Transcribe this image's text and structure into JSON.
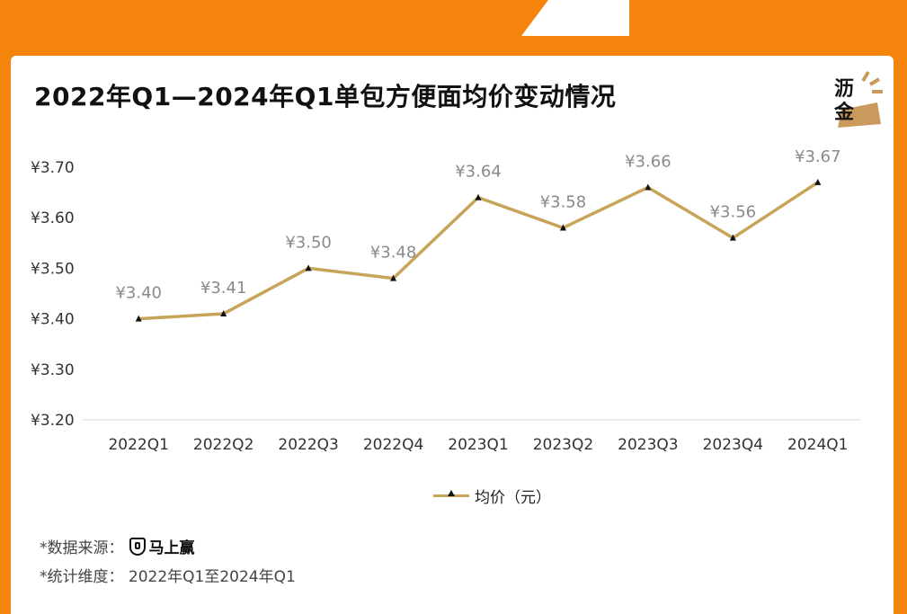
{
  "title": "2022年Q1—2024年Q1单包方便面均价变动情况",
  "logo": {
    "line1": "沥",
    "line2": "金",
    "color": "#c99a5b"
  },
  "colors": {
    "line": "#c7a45a",
    "marker": "#111111",
    "axis": "#e6e6e6",
    "background": "#f5840c"
  },
  "chart_data": {
    "type": "line",
    "title": "2022年Q1—2024年Q1单包方便面均价变动情况",
    "categories": [
      "2022Q1",
      "2022Q2",
      "2022Q3",
      "2022Q4",
      "2023Q1",
      "2023Q2",
      "2023Q3",
      "2023Q4",
      "2024Q1"
    ],
    "series": [
      {
        "name": "均价（元）",
        "values": [
          3.4,
          3.41,
          3.5,
          3.48,
          3.64,
          3.58,
          3.66,
          3.56,
          3.67
        ],
        "labels": [
          "¥3.40",
          "¥3.41",
          "¥3.50",
          "¥3.48",
          "¥3.64",
          "¥3.58",
          "¥3.66",
          "¥3.56",
          "¥3.67"
        ]
      }
    ],
    "ylim": [
      3.2,
      3.7
    ],
    "yticks": [
      3.2,
      3.3,
      3.4,
      3.5,
      3.6,
      3.7
    ],
    "ytick_labels": [
      "¥3.20",
      "¥3.30",
      "¥3.40",
      "¥3.50",
      "¥3.60",
      "¥3.70"
    ],
    "xlabel": "",
    "ylabel": "",
    "grid": false,
    "legend": "bottom-center"
  },
  "footer": {
    "source_label": "*数据来源：",
    "source_brand": "马上赢",
    "range_text": "*统计维度：  2022年Q1至2024年Q1"
  }
}
